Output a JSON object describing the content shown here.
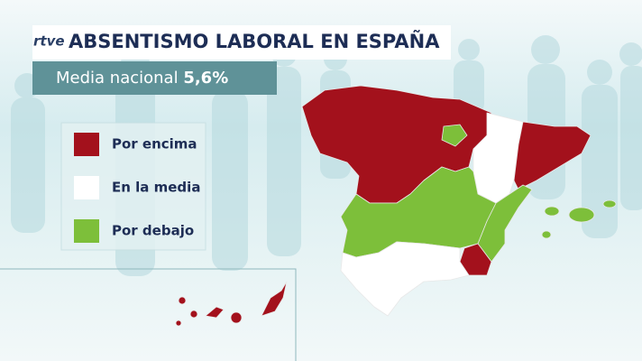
{
  "logo": "rtve",
  "header": {
    "title": "ABSENTISMO LABORAL EN ESPAÑA"
  },
  "subtitle": {
    "label": "Media nacional",
    "value": "5,6%"
  },
  "legend": [
    {
      "label": "Por encima",
      "color": "#a3111c"
    },
    {
      "label": "En la media",
      "color": "#ffffff"
    },
    {
      "label": "Por debajo",
      "color": "#7dbf3a"
    }
  ]
}
